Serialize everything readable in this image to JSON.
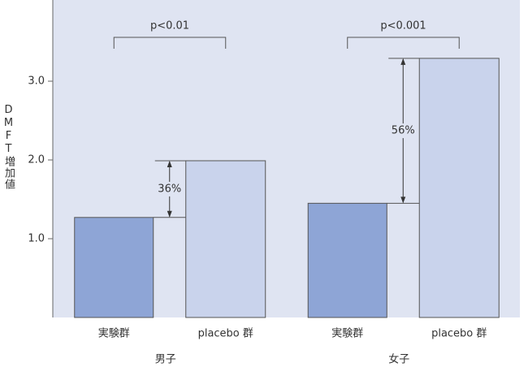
{
  "chart_data": {
    "type": "bar",
    "y_label": "DMFT増加値",
    "categories": [
      "男子",
      "女子"
    ],
    "series": [
      {
        "name": "実験群",
        "color": "#8ea5d6",
        "values": [
          1.27,
          1.45
        ]
      },
      {
        "name": "placebo 群",
        "color": "#c9d3ec",
        "values": [
          1.99,
          3.29
        ]
      }
    ],
    "annotations": {
      "significance": [
        "p<0.01",
        "p<0.001"
      ],
      "difference": [
        "36%",
        "56%"
      ]
    },
    "ylim": [
      0,
      4
    ],
    "yticks": [
      {
        "value": 1,
        "label": "1.0"
      },
      {
        "value": 2,
        "label": "2.0"
      },
      {
        "value": 3,
        "label": "3.0"
      }
    ],
    "background": "#dfe4f2"
  }
}
